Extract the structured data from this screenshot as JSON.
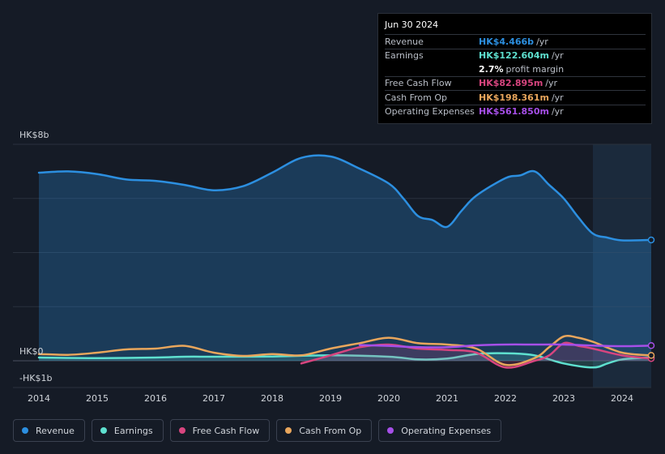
{
  "chart_data": {
    "type": "line",
    "currency_unit": "HK$",
    "y_axis_labels": [
      "HK$8b",
      "HK$0",
      "-HK$1b"
    ],
    "ylim": [
      -1,
      8
    ],
    "xlim": [
      2014.0,
      2024.5
    ],
    "x_tick_labels": [
      "2014",
      "2015",
      "2016",
      "2017",
      "2018",
      "2019",
      "2020",
      "2021",
      "2022",
      "2023",
      "2024"
    ],
    "x_ticks": [
      2014,
      2015,
      2016,
      2017,
      2018,
      2019,
      2020,
      2021,
      2022,
      2023,
      2024
    ],
    "highlight_start": 2023.5,
    "series": [
      {
        "name": "Revenue",
        "color": "#2c8fe0",
        "filled": true,
        "x": [
          2014.0,
          2014.5,
          2015.0,
          2015.5,
          2016.0,
          2016.5,
          2017.0,
          2017.5,
          2018.0,
          2018.5,
          2019.0,
          2019.5,
          2020.0,
          2020.25,
          2020.5,
          2020.75,
          2021.0,
          2021.25,
          2021.5,
          2022.0,
          2022.25,
          2022.5,
          2022.75,
          2023.0,
          2023.25,
          2023.5,
          2023.75,
          2024.0,
          2024.5
        ],
        "values": [
          6.95,
          7.0,
          6.9,
          6.7,
          6.65,
          6.5,
          6.3,
          6.45,
          6.95,
          7.5,
          7.55,
          7.1,
          6.55,
          6.0,
          5.35,
          5.2,
          4.95,
          5.55,
          6.1,
          6.75,
          6.85,
          7.0,
          6.5,
          6.0,
          5.3,
          4.7,
          4.55,
          4.45,
          4.466
        ]
      },
      {
        "name": "Earnings",
        "color": "#5ee0cf",
        "filled": true,
        "x": [
          2014.0,
          2015.0,
          2016.0,
          2016.5,
          2017.0,
          2018.0,
          2019.0,
          2020.0,
          2020.5,
          2021.0,
          2021.5,
          2022.0,
          2022.5,
          2023.0,
          2023.5,
          2023.75,
          2024.0,
          2024.5
        ],
        "values": [
          0.12,
          0.1,
          0.12,
          0.15,
          0.15,
          0.16,
          0.2,
          0.15,
          0.05,
          0.08,
          0.25,
          0.28,
          0.2,
          -0.1,
          -0.25,
          -0.1,
          0.05,
          0.1226
        ]
      },
      {
        "name": "Free Cash Flow",
        "color": "#d8457f",
        "filled": true,
        "x": [
          2018.5,
          2019.0,
          2019.5,
          2020.0,
          2020.5,
          2021.0,
          2021.5,
          2022.0,
          2022.5,
          2022.75,
          2023.0,
          2023.25,
          2023.5,
          2024.0,
          2024.5
        ],
        "values": [
          -0.1,
          0.2,
          0.5,
          0.6,
          0.45,
          0.4,
          0.3,
          -0.25,
          0.0,
          0.2,
          0.65,
          0.55,
          0.45,
          0.2,
          0.0829
        ]
      },
      {
        "name": "Cash From Op",
        "color": "#e9a65c",
        "filled": false,
        "x": [
          2014.0,
          2014.5,
          2015.0,
          2015.5,
          2016.0,
          2016.5,
          2017.0,
          2017.5,
          2018.0,
          2018.5,
          2019.0,
          2019.5,
          2020.0,
          2020.5,
          2021.0,
          2021.5,
          2022.0,
          2022.5,
          2022.75,
          2023.0,
          2023.25,
          2023.5,
          2024.0,
          2024.5
        ],
        "values": [
          0.25,
          0.22,
          0.3,
          0.42,
          0.45,
          0.55,
          0.3,
          0.18,
          0.25,
          0.2,
          0.45,
          0.65,
          0.85,
          0.65,
          0.6,
          0.45,
          -0.15,
          0.1,
          0.5,
          0.9,
          0.85,
          0.7,
          0.3,
          0.1984
        ]
      },
      {
        "name": "Operating Expenses",
        "color": "#a64fe8",
        "filled": false,
        "x": [
          2019.5,
          2020.0,
          2020.5,
          2021.0,
          2021.5,
          2022.0,
          2022.5,
          2023.0,
          2023.5,
          2024.0,
          2024.5
        ],
        "values": [
          0.58,
          0.55,
          0.5,
          0.5,
          0.57,
          0.6,
          0.6,
          0.6,
          0.56,
          0.54,
          0.5619
        ]
      }
    ]
  },
  "tooltip": {
    "date": "Jun 30 2024",
    "rows": [
      {
        "label": "Revenue",
        "value": "HK$4.466b",
        "suffix": "/yr",
        "color": "#2c8fe0"
      },
      {
        "label": "Earnings",
        "value": "HK$122.604m",
        "suffix": "/yr",
        "color": "#5ee0cf"
      },
      {
        "label": "",
        "value": "2.7%",
        "suffix": "profit margin",
        "color": "#ffffff"
      },
      {
        "label": "Free Cash Flow",
        "value": "HK$82.895m",
        "suffix": "/yr",
        "color": "#d8457f"
      },
      {
        "label": "Cash From Op",
        "value": "HK$198.361m",
        "suffix": "/yr",
        "color": "#e9a65c"
      },
      {
        "label": "Operating Expenses",
        "value": "HK$561.850m",
        "suffix": "/yr",
        "color": "#a64fe8"
      }
    ]
  },
  "legend": [
    {
      "label": "Revenue",
      "color": "#2c8fe0"
    },
    {
      "label": "Earnings",
      "color": "#5ee0cf"
    },
    {
      "label": "Free Cash Flow",
      "color": "#d8457f"
    },
    {
      "label": "Cash From Op",
      "color": "#e9a65c"
    },
    {
      "label": "Operating Expenses",
      "color": "#a64fe8"
    }
  ]
}
